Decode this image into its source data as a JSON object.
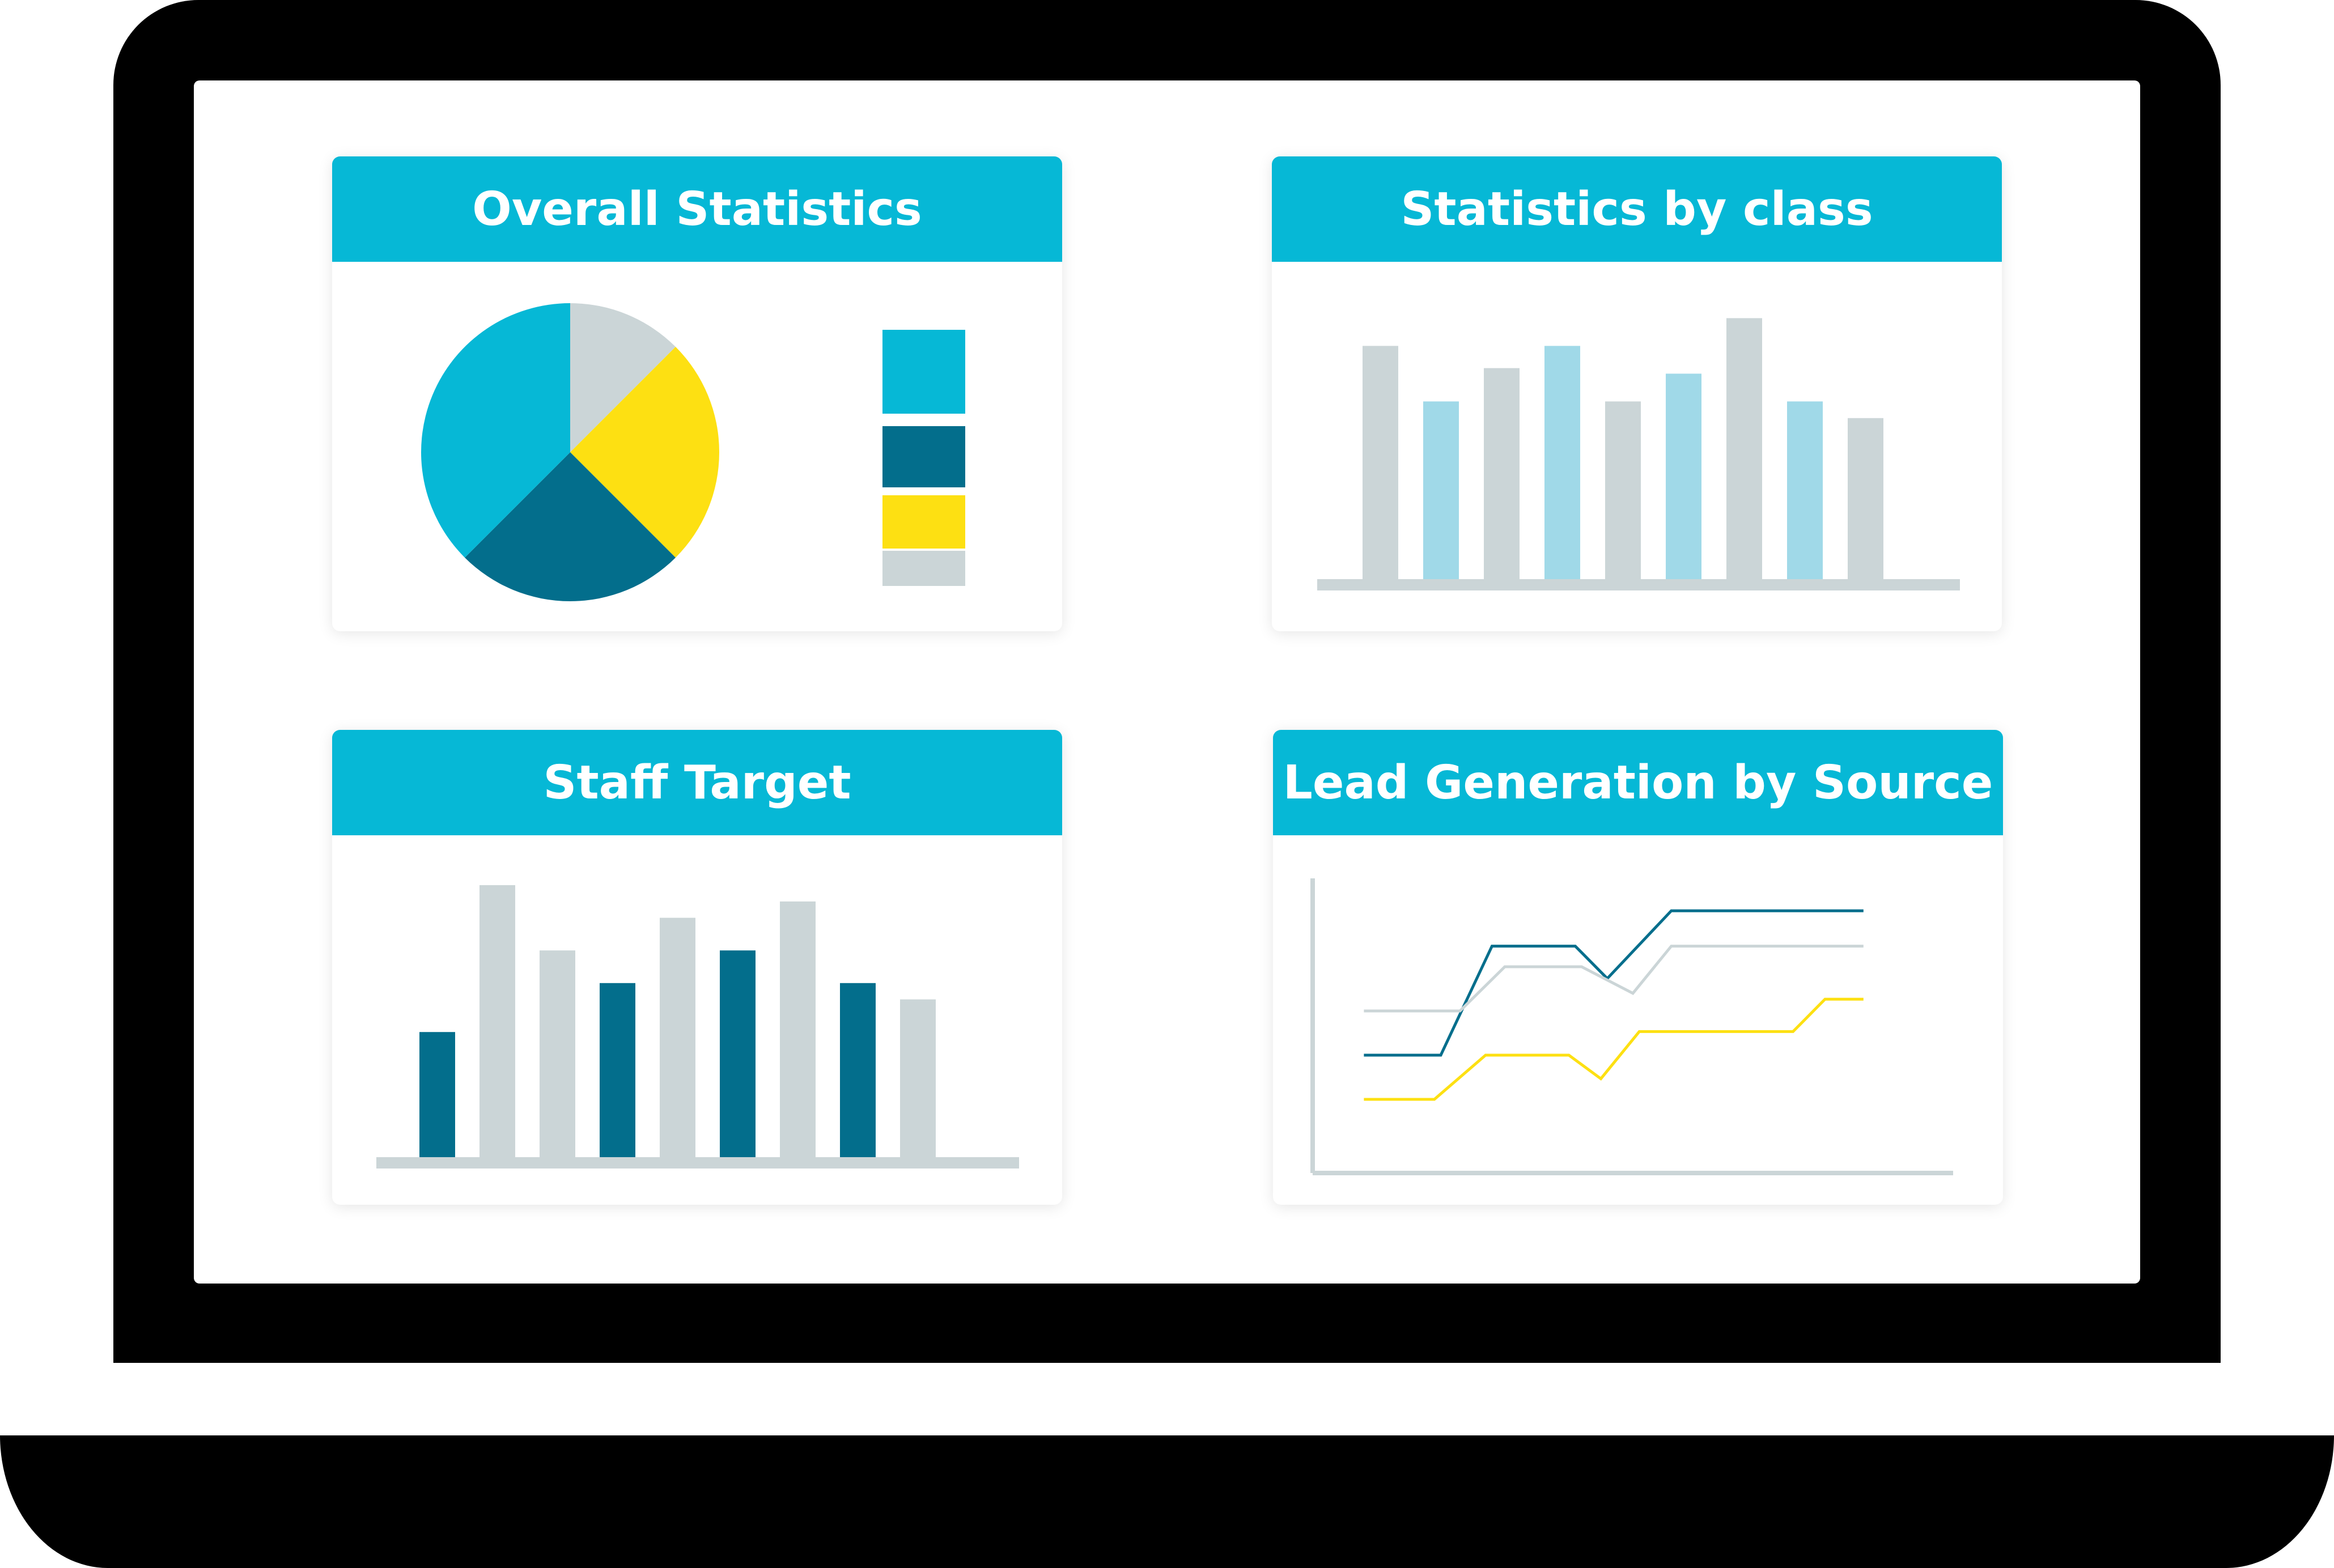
{
  "colors": {
    "cyan": "#06b8d6",
    "teal": "#036e8c",
    "yellow": "#fde012",
    "gray": "#cbd5d7",
    "lightblue": "#a0d9e8"
  },
  "panels": {
    "overall": {
      "title": "Overall Statistics"
    },
    "byclass": {
      "title": "Statistics by class"
    },
    "staff": {
      "title": "Staff Target"
    },
    "lead": {
      "title": "Lead Generation by Source"
    }
  },
  "chart_data": [
    {
      "type": "pie",
      "title": "Overall Statistics",
      "slices": [
        {
          "value": 12.5,
          "color": "#cbd5d7"
        },
        {
          "value": 25,
          "color": "#fde012"
        },
        {
          "value": 25,
          "color": "#036e8c"
        },
        {
          "value": 37.5,
          "color": "#06b8d6"
        }
      ],
      "legend_swatches": [
        "#06b8d6",
        "#036e8c",
        "#fde012",
        "#cbd5d7"
      ]
    },
    {
      "type": "bar",
      "title": "Statistics by class",
      "values": [
        42,
        32,
        38,
        42,
        32,
        37,
        47,
        32,
        29
      ],
      "colors": [
        "#cbd5d7",
        "#a0d9e8",
        "#cbd5d7",
        "#a0d9e8",
        "#cbd5d7",
        "#a0d9e8",
        "#cbd5d7",
        "#a0d9e8",
        "#cbd5d7"
      ],
      "ylim": [
        0,
        50
      ]
    },
    {
      "type": "bar",
      "title": "Staff Target",
      "values": [
        23,
        50,
        38,
        32,
        44,
        38,
        47,
        32,
        29
      ],
      "colors": [
        "#036e8c",
        "#cbd5d7",
        "#cbd5d7",
        "#036e8c",
        "#cbd5d7",
        "#036e8c",
        "#cbd5d7",
        "#036e8c",
        "#cbd5d7"
      ],
      "ylim": [
        0,
        55
      ]
    },
    {
      "type": "line",
      "title": "Lead Generation by Source",
      "xlim": [
        0,
        10
      ],
      "ylim": [
        0,
        10
      ],
      "series": [
        {
          "color": "#036e8c",
          "points": [
            [
              0.8,
              4.0
            ],
            [
              2.0,
              4.0
            ],
            [
              2.8,
              7.7
            ],
            [
              4.1,
              7.7
            ],
            [
              4.6,
              6.6
            ],
            [
              5.6,
              8.9
            ],
            [
              8.6,
              8.9
            ]
          ]
        },
        {
          "color": "#cbd5d7",
          "points": [
            [
              0.8,
              5.5
            ],
            [
              2.3,
              5.5
            ],
            [
              3.0,
              7.0
            ],
            [
              4.2,
              7.0
            ],
            [
              5.0,
              6.1
            ],
            [
              5.6,
              7.7
            ],
            [
              8.6,
              7.7
            ]
          ]
        },
        {
          "color": "#fde012",
          "points": [
            [
              0.8,
              2.5
            ],
            [
              1.9,
              2.5
            ],
            [
              2.7,
              4.0
            ],
            [
              4.0,
              4.0
            ],
            [
              4.5,
              3.2
            ],
            [
              5.1,
              4.8
            ],
            [
              7.5,
              4.8
            ],
            [
              8.0,
              5.9
            ],
            [
              8.6,
              5.9
            ]
          ]
        }
      ]
    }
  ]
}
